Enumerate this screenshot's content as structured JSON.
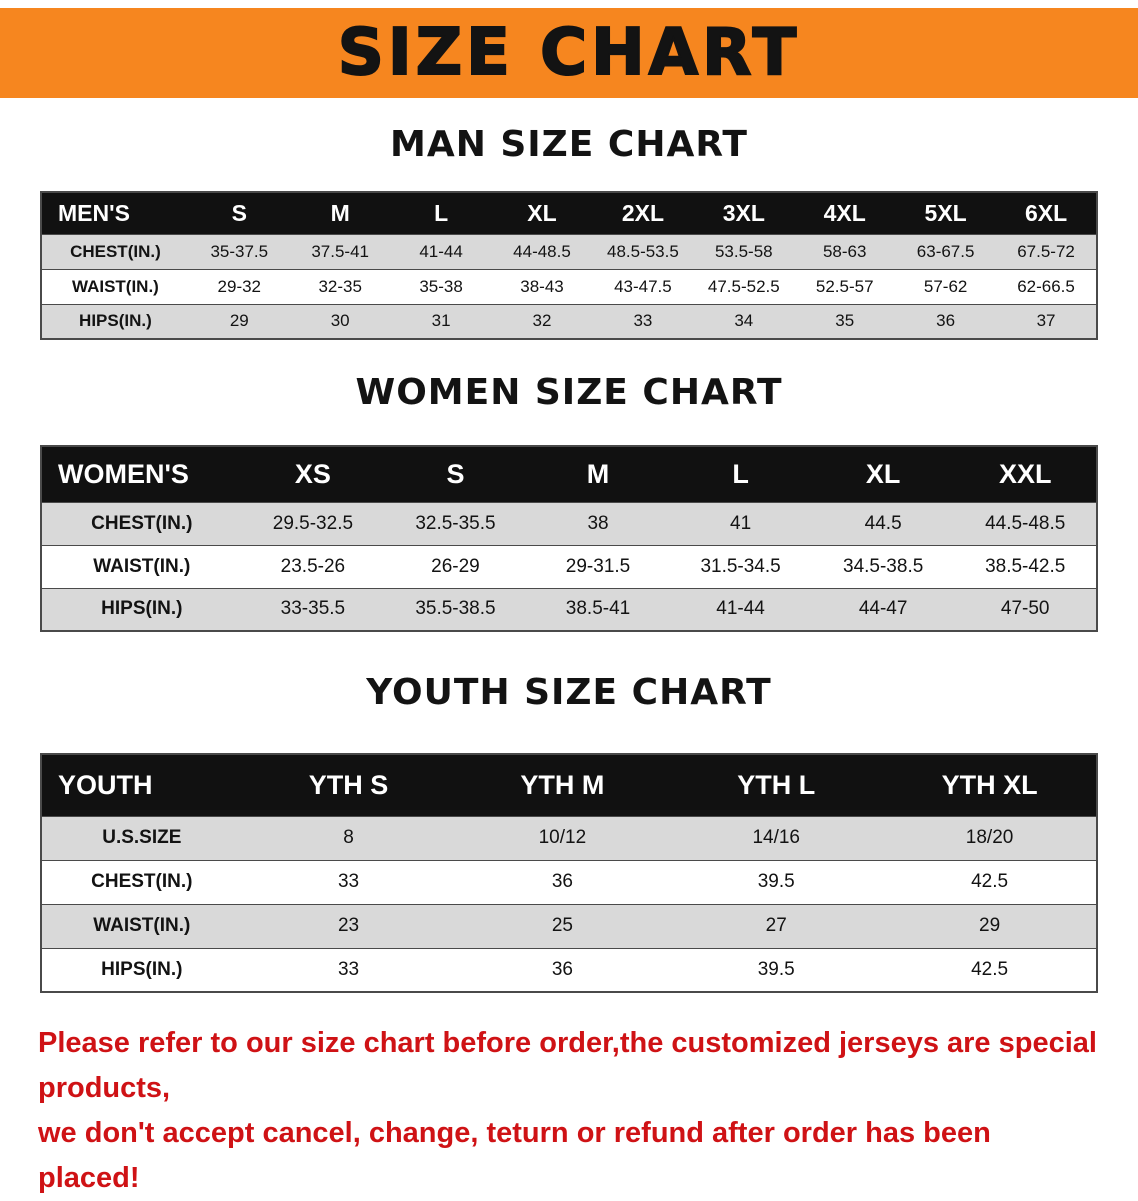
{
  "colors": {
    "banner_bg": "#f6861f",
    "header_band": "#111111",
    "row_shade": "#d9d9d9",
    "footer_text": "#cf1215",
    "title_text": "#131313"
  },
  "banner": {
    "title": "SIZE CHART"
  },
  "sections": {
    "men": {
      "heading": "MAN SIZE CHART"
    },
    "women": {
      "heading": "WOMEN SIZE CHART"
    },
    "youth": {
      "heading": "YOUTH SIZE CHART"
    }
  },
  "tables": {
    "men": {
      "header": [
        "MEN'S",
        "S",
        "M",
        "L",
        "XL",
        "2XL",
        "3XL",
        "4XL",
        "5XL",
        "6XL"
      ],
      "rows": [
        {
          "label": "CHEST(IN.)",
          "values": [
            "35-37.5",
            "37.5-41",
            "41-44",
            "44-48.5",
            "48.5-53.5",
            "53.5-58",
            "58-63",
            "63-67.5",
            "67.5-72"
          ]
        },
        {
          "label": "WAIST(IN.)",
          "values": [
            "29-32",
            "32-35",
            "35-38",
            "38-43",
            "43-47.5",
            "47.5-52.5",
            "52.5-57",
            "57-62",
            "62-66.5"
          ]
        },
        {
          "label": "HIPS(IN.)",
          "values": [
            "29",
            "30",
            "31",
            "32",
            "33",
            "34",
            "35",
            "36",
            "37"
          ]
        }
      ]
    },
    "women": {
      "header": [
        "WOMEN'S",
        "XS",
        "S",
        "M",
        "L",
        "XL",
        "XXL"
      ],
      "rows": [
        {
          "label": "CHEST(IN.)",
          "values": [
            "29.5-32.5",
            "32.5-35.5",
            "38",
            "41",
            "44.5",
            "44.5-48.5"
          ]
        },
        {
          "label": "WAIST(IN.)",
          "values": [
            "23.5-26",
            "26-29",
            "29-31.5",
            "31.5-34.5",
            "34.5-38.5",
            "38.5-42.5"
          ]
        },
        {
          "label": "HIPS(IN.)",
          "values": [
            "33-35.5",
            "35.5-38.5",
            "38.5-41",
            "41-44",
            "44-47",
            "47-50"
          ]
        }
      ]
    },
    "youth": {
      "header": [
        "YOUTH",
        "YTH S",
        "YTH M",
        "YTH L",
        "YTH XL"
      ],
      "rows": [
        {
          "label": "U.S.SIZE",
          "values": [
            "8",
            "10/12",
            "14/16",
            "18/20"
          ]
        },
        {
          "label": "CHEST(IN.)",
          "values": [
            "33",
            "36",
            "39.5",
            "42.5"
          ]
        },
        {
          "label": "WAIST(IN.)",
          "values": [
            "23",
            "25",
            "27",
            "29"
          ]
        },
        {
          "label": "HIPS(IN.)",
          "values": [
            "33",
            "36",
            "39.5",
            "42.5"
          ]
        }
      ]
    }
  },
  "footer": {
    "lines": [
      "Please refer to our size chart before order,the customized jerseys are special products,",
      "we don't accept cancel, change, teturn or refund after order has been placed!"
    ]
  }
}
